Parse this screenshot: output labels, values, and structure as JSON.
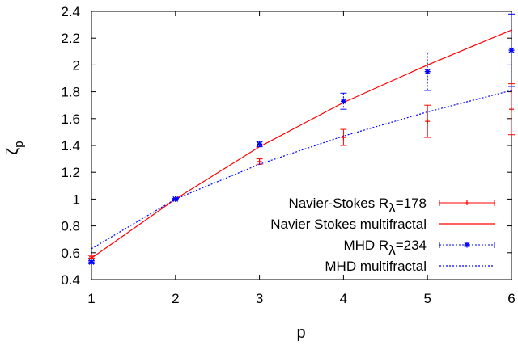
{
  "chart_data": {
    "type": "line",
    "xlabel": "p",
    "ylabel": "ζp",
    "xlim": [
      1,
      6
    ],
    "ylim": [
      0.4,
      2.4
    ],
    "x_ticks": [
      "1",
      "2",
      "3",
      "4",
      "5",
      "6"
    ],
    "y_ticks": [
      "0.4",
      "0.6",
      "0.8",
      "1",
      "1.2",
      "1.4",
      "1.6",
      "1.8",
      "2",
      "2.2",
      "2.4"
    ],
    "grid": false,
    "legend_position": "bottom-right",
    "series": [
      {
        "name": "Navier-Stokes Rλ=178",
        "kind": "errorbar",
        "color": "#ff0000",
        "marker": "plus",
        "x": [
          1,
          2,
          3,
          4,
          5,
          6
        ],
        "y": [
          0.57,
          1.0,
          1.28,
          1.46,
          1.58,
          1.67
        ],
        "yerr": [
          0.01,
          0.005,
          0.02,
          0.06,
          0.12,
          0.19
        ]
      },
      {
        "name": "Navier Stokes multifractal",
        "kind": "line",
        "color": "#ff0000",
        "dash": "solid",
        "x": [
          1,
          2,
          3,
          4,
          5,
          6
        ],
        "y": [
          0.56,
          1.0,
          1.39,
          1.72,
          2.0,
          2.26
        ]
      },
      {
        "name": "MHD Rλ=234",
        "kind": "errorbar",
        "color": "#0000ff",
        "marker": "star",
        "x": [
          1,
          2,
          3,
          4,
          5,
          6
        ],
        "y": [
          0.53,
          1.0,
          1.41,
          1.73,
          1.95,
          2.11
        ],
        "yerr": [
          0.01,
          0.005,
          0.02,
          0.06,
          0.14,
          0.27
        ]
      },
      {
        "name": "MHD multifractal",
        "kind": "line",
        "color": "#0000ff",
        "dash": "dotted",
        "x": [
          1,
          2,
          3,
          4,
          5,
          6
        ],
        "y": [
          0.63,
          1.0,
          1.26,
          1.47,
          1.65,
          1.81
        ]
      }
    ],
    "legend": [
      {
        "label_main": "Navier-Stokes R",
        "label_sub": "λ",
        "label_tail": "=178"
      },
      {
        "label_main": "Navier Stokes multifractal",
        "label_sub": "",
        "label_tail": ""
      },
      {
        "label_main": "MHD R",
        "label_sub": "λ",
        "label_tail": "=234"
      },
      {
        "label_main": "MHD multifractal",
        "label_sub": "",
        "label_tail": ""
      }
    ]
  }
}
